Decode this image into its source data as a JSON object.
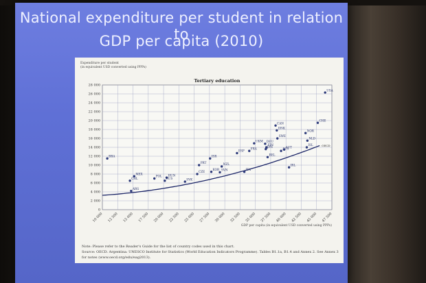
{
  "slide": {
    "title_line1": "National expenditure per student in relation to",
    "title_line2": "GDP per capita (2010)"
  },
  "chart_data": {
    "type": "scatter",
    "title": "Tertiary education",
    "ylabel_line1": "Expenditure per student",
    "ylabel_line2": "(in equivalent USD converted using PPPs)",
    "xlabel": "GDP per capita (in equivalent USD converted using PPPs)",
    "xlim": [
      10000,
      47500
    ],
    "ylim": [
      0,
      28000
    ],
    "x_ticks": [
      "10 000",
      "12 500",
      "15 000",
      "17 500",
      "20 000",
      "22 500",
      "25 000",
      "27 500",
      "30 000",
      "32 500",
      "35 000",
      "37 500",
      "40 000",
      "42 500",
      "45 000",
      "47 500"
    ],
    "y_ticks": [
      "0",
      "2 000",
      "4 000",
      "6 000",
      "8 000",
      "10 000",
      "12 000",
      "14 000",
      "16 000",
      "18 000",
      "20 000",
      "22 000",
      "24 000",
      "26 000",
      "28 000"
    ],
    "points": [
      {
        "label": "BRA",
        "x": 10800,
        "y": 11500
      },
      {
        "label": "CHL",
        "x": 14500,
        "y": 6500
      },
      {
        "label": "MEX",
        "x": 15200,
        "y": 7500
      },
      {
        "label": "ARG",
        "x": 14700,
        "y": 4200
      },
      {
        "label": "POL",
        "x": 18500,
        "y": 7000
      },
      {
        "label": "HUN",
        "x": 20500,
        "y": 7200
      },
      {
        "label": "RUS",
        "x": 20200,
        "y": 6500
      },
      {
        "label": "SVK",
        "x": 23500,
        "y": 6300
      },
      {
        "label": "CZE",
        "x": 25500,
        "y": 8000
      },
      {
        "label": "PRT",
        "x": 25800,
        "y": 10000
      },
      {
        "label": "KOR",
        "x": 27800,
        "y": 8500
      },
      {
        "label": "ISR",
        "x": 27600,
        "y": 11500
      },
      {
        "label": "NZL",
        "x": 29500,
        "y": 9700
      },
      {
        "label": "SVN",
        "x": 29200,
        "y": 8400
      },
      {
        "label": "ITA",
        "x": 33200,
        "y": 8500
      },
      {
        "label": "ESP",
        "x": 32000,
        "y": 12700
      },
      {
        "label": "FRA",
        "x": 34000,
        "y": 13200
      },
      {
        "label": "UKM",
        "x": 34800,
        "y": 14900
      },
      {
        "label": "DEU",
        "x": 36600,
        "y": 14800
      },
      {
        "label": "FIN",
        "x": 36800,
        "y": 14000
      },
      {
        "label": "JPN",
        "x": 36700,
        "y": 13600
      },
      {
        "label": "BEL",
        "x": 37000,
        "y": 11800
      },
      {
        "label": "CAN",
        "x": 38300,
        "y": 18900
      },
      {
        "label": "DNK",
        "x": 38500,
        "y": 17800
      },
      {
        "label": "SWE",
        "x": 38600,
        "y": 16000
      },
      {
        "label": "AUS",
        "x": 39200,
        "y": 13200
      },
      {
        "label": "AUT",
        "x": 39700,
        "y": 13500
      },
      {
        "label": "IRL",
        "x": 40500,
        "y": 9500
      },
      {
        "label": "NOR",
        "x": 43200,
        "y": 17200
      },
      {
        "label": "NLD",
        "x": 43500,
        "y": 15500
      },
      {
        "label": "ISL",
        "x": 43400,
        "y": 14000
      },
      {
        "label": "CHE",
        "x": 45200,
        "y": 19500
      },
      {
        "label": "USA",
        "x": 46400,
        "y": 26300
      }
    ],
    "trend_label": "OECD",
    "notes": [
      "Note: Please refer to the Reader's Guide for the list of country codes used in this chart.",
      "Source: OECD. Argentina: UNESCO Institute for Statistics (World Education Indicators Programme). Tables B1.1a, B1.4 and Annex 2. See Annex 3",
      "for notes (www.oecd.org/edu/eag2013)."
    ]
  },
  "colors": {
    "screen": "#6272d8",
    "point": "#2d3a7a",
    "grid": "#9aa0c0",
    "trend": "#1a2466"
  }
}
